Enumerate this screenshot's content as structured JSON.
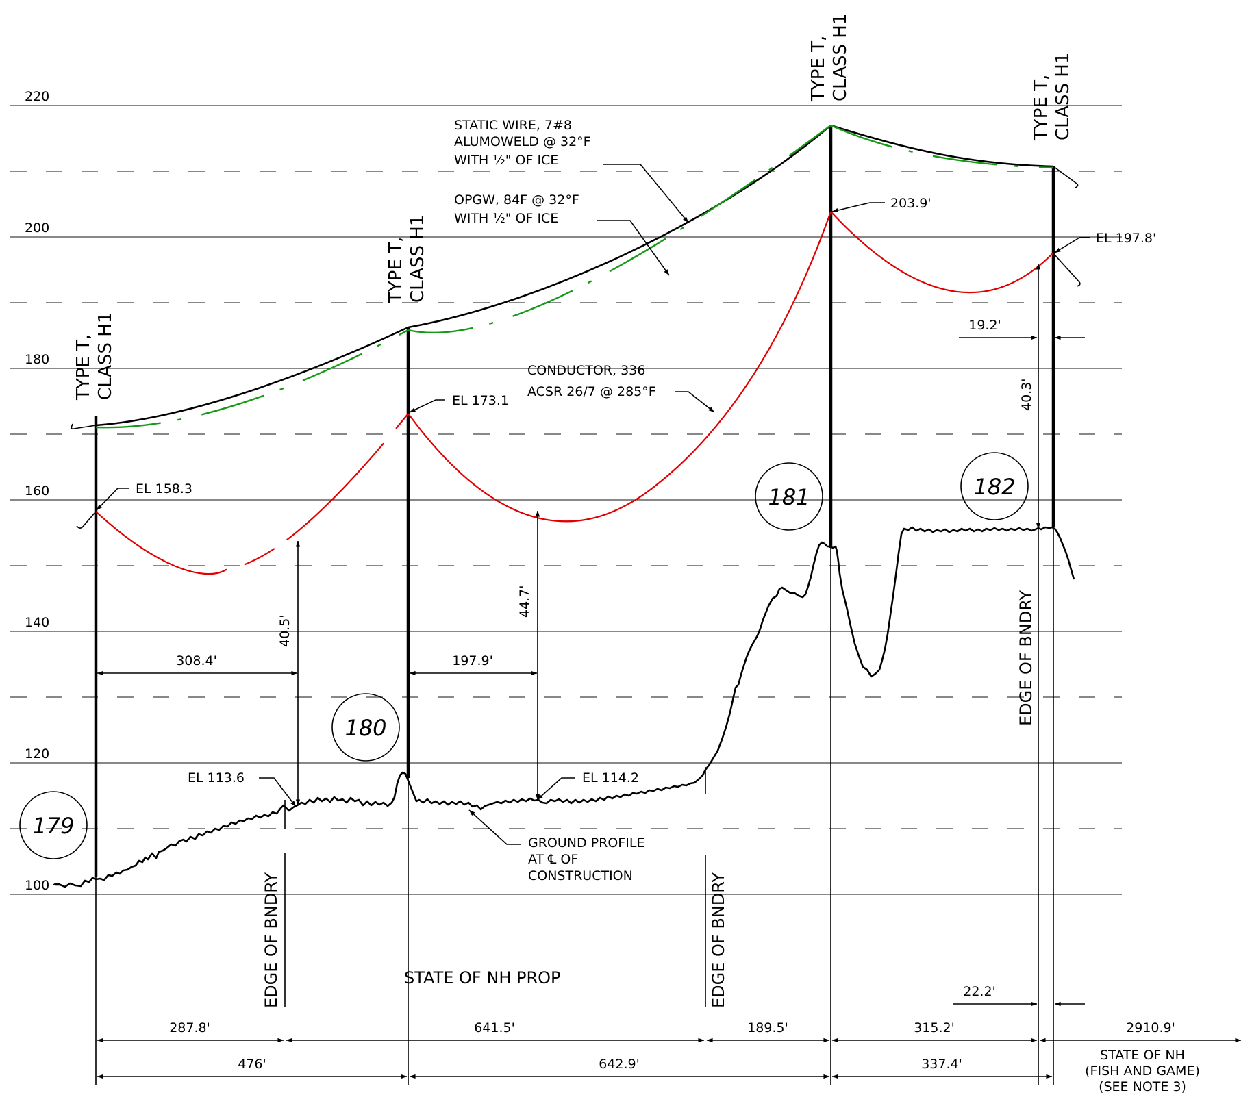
{
  "elevation_labels": [
    "220",
    "200",
    "180",
    "160",
    "140",
    "120",
    "100"
  ],
  "towers": [
    {
      "number": "179",
      "type": "TYPE T,",
      "class": "CLASS H1"
    },
    {
      "number": "180",
      "type": "TYPE T,",
      "class": "CLASS H1"
    },
    {
      "number": "181",
      "type": "TYPE T,",
      "class": "CLASS H1"
    },
    {
      "number": "182",
      "type": "TYPE T,",
      "class": "CLASS H1"
    }
  ],
  "notes": {
    "static_wire": [
      "STATIC WIRE, 7#8",
      "ALUMOWELD @ 32°F",
      "WITH ½\" OF ICE"
    ],
    "opgw": [
      "OPGW, 84F @ 32°F",
      "WITH ½\" OF ICE"
    ],
    "conductor_line1": "CONDUCTOR, 336",
    "conductor_line2": "ACSR 26/7 @ 285°F",
    "ground_profile": [
      "GROUND PROFILE",
      "AT ℄ OF",
      "CONSTRUCTION"
    ]
  },
  "elevations": {
    "t179_attach": "EL 158.3",
    "t180_attach": "EL 173.1",
    "t181_attach": "203.9'",
    "t182_attach": "EL 197.8'",
    "ground_1": "EL 113.6",
    "ground_2": "EL 114.2"
  },
  "clearances": {
    "span1_horiz": "308.4'",
    "span1_vert": "40.5'",
    "span2_horiz": "197.9'",
    "span2_vert": "44.7'",
    "t182_offset": "19.2'",
    "t182_vert": "40.3'",
    "t182_bottom_offset": "22.2'"
  },
  "boundaries": {
    "edge_label": "EDGE OF BNDRY",
    "state_prop": "STATE OF NH PROP",
    "fish_game": [
      "STATE OF NH",
      "(FISH AND GAME)",
      "(SEE NOTE 3)"
    ]
  },
  "property_dims": [
    "287.8'",
    "641.5'",
    "189.5'",
    "315.2'",
    "2910.9'"
  ],
  "span_dims": [
    "476'",
    "642.9'",
    "337.4'"
  ]
}
